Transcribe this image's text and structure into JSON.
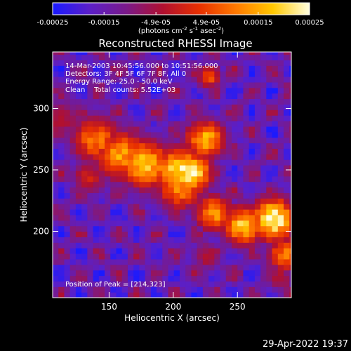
{
  "chart_data": {
    "type": "heatmap",
    "title": "Reconstructed RHESSI Image",
    "xlabel": "Heliocentric X (arcsec)",
    "ylabel": "Heliocentric Y (arcsec)",
    "xlim": [
      106,
      292
    ],
    "ylim": [
      146,
      346
    ],
    "x_ticks": [
      150,
      200,
      250
    ],
    "y_ticks": [
      200,
      250,
      300
    ],
    "colorbar": {
      "range": [
        -0.00025,
        0.00025
      ],
      "ticks": [
        "-0.00025",
        "-0.00015",
        "-4.9e-05",
        "4.9e-05",
        "0.00015",
        "0.00025"
      ],
      "tick_values": [
        -0.00025,
        -0.00015,
        -4.9e-05,
        4.9e-05,
        0.00015,
        0.00025
      ],
      "label": "(photons cm",
      "label_exp1": "-2",
      "label_mid": " s",
      "label_exp2": "-1",
      "label_mid2": " asec",
      "label_exp3": "-2",
      "label_end": ")",
      "colormap": [
        "#1a1aff",
        "#5b1fc8",
        "#7a1a8a",
        "#b01030",
        "#e83000",
        "#ff7a00",
        "#ffc800",
        "#ffffe0"
      ]
    },
    "annotations": [
      "14-Mar-2003 10:45:56.000 to 10:51:56.000",
      "Detectors: 3F 4F 5F 6F 7F 8F, All 0",
      "Energy Range: 25.0 - 50.0 keV",
      "Clean    Total counts: 5.52E+03"
    ],
    "peak_label": "Position of Peak = [214,323]",
    "peak": [
      214,
      323
    ],
    "emission_ridge": [
      {
        "x": 113,
        "y": 292,
        "level": 0.45,
        "width": 14
      },
      {
        "x": 140,
        "y": 275,
        "level": 0.7,
        "width": 16
      },
      {
        "x": 160,
        "y": 262,
        "level": 0.78,
        "width": 17
      },
      {
        "x": 178,
        "y": 255,
        "level": 0.88,
        "width": 16
      },
      {
        "x": 205,
        "y": 250,
        "level": 0.92,
        "width": 15
      },
      {
        "x": 212,
        "y": 248,
        "level": 1.0,
        "width": 14
      },
      {
        "x": 225,
        "y": 275,
        "level": 0.82,
        "width": 13
      },
      {
        "x": 205,
        "y": 236,
        "level": 0.75,
        "width": 15
      },
      {
        "x": 232,
        "y": 215,
        "level": 0.78,
        "width": 12
      },
      {
        "x": 255,
        "y": 205,
        "level": 0.88,
        "width": 13
      },
      {
        "x": 278,
        "y": 210,
        "level": 1.0,
        "width": 14
      },
      {
        "x": 288,
        "y": 182,
        "level": 0.72,
        "width": 12
      },
      {
        "x": 135,
        "y": 245,
        "level": 0.5,
        "width": 12
      },
      {
        "x": 228,
        "y": 326,
        "level": 0.62,
        "width": 8
      },
      {
        "x": 226,
        "y": 180,
        "level": 0.45,
        "width": 10
      },
      {
        "x": 283,
        "y": 162,
        "level": 0.45,
        "width": 9
      }
    ]
  },
  "footer": {
    "timestamp": "29-Apr-2022 19:37"
  }
}
